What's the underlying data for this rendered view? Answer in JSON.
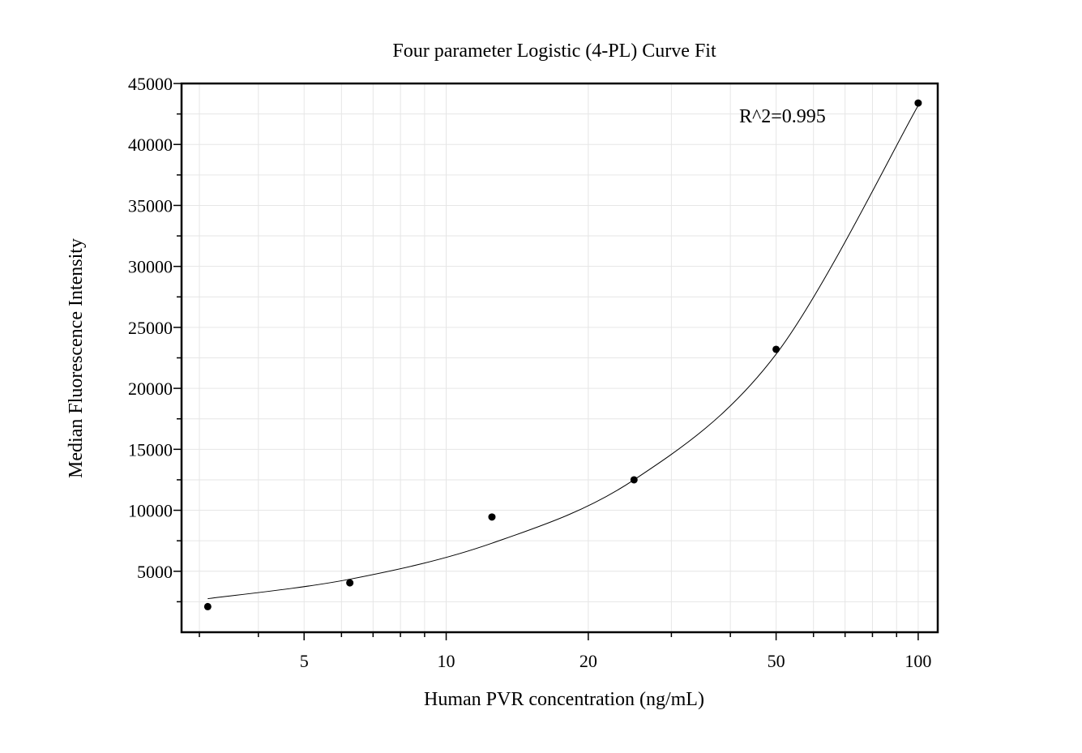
{
  "chart_data": {
    "type": "scatter",
    "title": "Four parameter Logistic (4-PL) Curve Fit",
    "xlabel": "Human PVR concentration (ng/mL)",
    "ylabel": "Median Fluorescence Intensity",
    "x_scale": "log",
    "xlim": [
      2.75,
      110
    ],
    "ylim": [
      0,
      45000
    ],
    "x_ticks": [
      5,
      10,
      20,
      50,
      100
    ],
    "x_tick_labels": [
      "5",
      "10",
      "20",
      "50",
      "100"
    ],
    "y_ticks": [
      5000,
      10000,
      15000,
      20000,
      25000,
      30000,
      35000,
      40000,
      45000
    ],
    "y_tick_labels": [
      "5000",
      "10000",
      "15000",
      "20000",
      "25000",
      "30000",
      "35000",
      "40000",
      "45000"
    ],
    "grid": true,
    "series": [
      {
        "type": "scatter",
        "x": [
          3.125,
          6.25,
          12.5,
          25,
          50,
          100
        ],
        "y": [
          2100,
          4050,
          9450,
          12500,
          23200,
          43400
        ]
      },
      {
        "type": "line",
        "x": [
          3.125,
          6.25,
          12.5,
          25,
          50,
          100
        ],
        "y": [
          2750,
          4350,
          7300,
          12500,
          22800,
          43200
        ]
      }
    ],
    "annotation": "R^2=0.995"
  }
}
